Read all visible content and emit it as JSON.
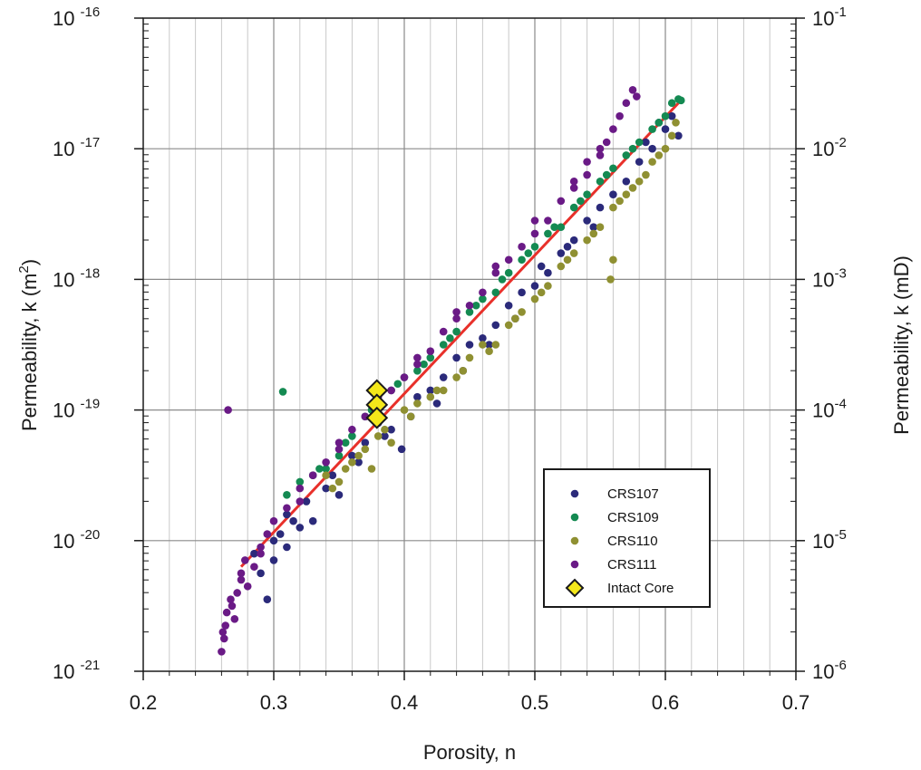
{
  "chart_data": {
    "type": "scatter",
    "title": "",
    "xlabel": "Porosity, n",
    "ylabel_left": "Permeability, k (m",
    "ylabel_left_sup": "2",
    "ylabel_left_end": ")",
    "ylabel_right": "Permeability, k (mD)",
    "xlim": [
      0.2,
      0.7
    ],
    "ylim_left_log10": [
      -21,
      -16
    ],
    "ylim_right_log10": [
      -6,
      -1
    ],
    "yscale": "log",
    "grid": true,
    "legend_placement": "lower-right",
    "x_ticks": [
      "0.2",
      "0.3",
      "0.4",
      "0.5",
      "0.6",
      "0.7"
    ],
    "y_left_ticks": [
      {
        "base": "10",
        "exp": "-16"
      },
      {
        "base": "10",
        "exp": "-17"
      },
      {
        "base": "10",
        "exp": "-18"
      },
      {
        "base": "10",
        "exp": "-19"
      },
      {
        "base": "10",
        "exp": "-20"
      },
      {
        "base": "10",
        "exp": "-21"
      }
    ],
    "y_right_ticks": [
      {
        "base": "10",
        "exp": "-1"
      },
      {
        "base": "10",
        "exp": "-2"
      },
      {
        "base": "10",
        "exp": "-3"
      },
      {
        "base": "10",
        "exp": "-4"
      },
      {
        "base": "10",
        "exp": "-5"
      },
      {
        "base": "10",
        "exp": "-6"
      }
    ],
    "fit_line": {
      "x": [
        0.275,
        0.61
      ],
      "log10_k": [
        -20.2,
        -16.65
      ],
      "color": "#e8302a"
    },
    "series": [
      {
        "name": "CRS107",
        "color": "#2b2a7a",
        "marker": "circle",
        "points": [
          [
            0.285,
            -20.1
          ],
          [
            0.29,
            -20.25
          ],
          [
            0.295,
            -20.45
          ],
          [
            0.3,
            -20.0
          ],
          [
            0.305,
            -19.95
          ],
          [
            0.31,
            -20.05
          ],
          [
            0.315,
            -19.85
          ],
          [
            0.325,
            -19.7
          ],
          [
            0.33,
            -19.85
          ],
          [
            0.34,
            -19.6
          ],
          [
            0.35,
            -19.65
          ],
          [
            0.36,
            -19.35
          ],
          [
            0.37,
            -19.25
          ],
          [
            0.38,
            -19.1
          ],
          [
            0.39,
            -19.15
          ],
          [
            0.398,
            -19.3
          ],
          [
            0.41,
            -18.9
          ],
          [
            0.42,
            -18.85
          ],
          [
            0.43,
            -18.75
          ],
          [
            0.44,
            -18.6
          ],
          [
            0.45,
            -18.5
          ],
          [
            0.46,
            -18.45
          ],
          [
            0.47,
            -18.35
          ],
          [
            0.48,
            -18.2
          ],
          [
            0.49,
            -18.1
          ],
          [
            0.5,
            -18.05
          ],
          [
            0.51,
            -17.95
          ],
          [
            0.52,
            -17.8
          ],
          [
            0.53,
            -17.7
          ],
          [
            0.54,
            -17.55
          ],
          [
            0.55,
            -17.45
          ],
          [
            0.56,
            -17.35
          ],
          [
            0.57,
            -17.25
          ],
          [
            0.58,
            -17.1
          ],
          [
            0.59,
            -17.0
          ],
          [
            0.6,
            -16.85
          ],
          [
            0.61,
            -16.9
          ],
          [
            0.605,
            -16.75
          ],
          [
            0.595,
            -16.8
          ],
          [
            0.585,
            -16.95
          ],
          [
            0.545,
            -17.6
          ],
          [
            0.525,
            -17.75
          ],
          [
            0.505,
            -17.9
          ],
          [
            0.485,
            -18.3
          ],
          [
            0.465,
            -18.5
          ],
          [
            0.445,
            -18.7
          ],
          [
            0.425,
            -18.95
          ],
          [
            0.405,
            -19.05
          ],
          [
            0.385,
            -19.2
          ],
          [
            0.365,
            -19.4
          ],
          [
            0.345,
            -19.5
          ],
          [
            0.32,
            -19.9
          ],
          [
            0.3,
            -20.15
          ],
          [
            0.31,
            -19.8
          ]
        ]
      },
      {
        "name": "CRS109",
        "color": "#148a52",
        "marker": "circle",
        "points": [
          [
            0.307,
            -18.86
          ],
          [
            0.31,
            -19.65
          ],
          [
            0.32,
            -19.55
          ],
          [
            0.33,
            -19.5
          ],
          [
            0.34,
            -19.45
          ],
          [
            0.35,
            -19.35
          ],
          [
            0.36,
            -19.2
          ],
          [
            0.37,
            -19.05
          ],
          [
            0.38,
            -18.95
          ],
          [
            0.39,
            -18.85
          ],
          [
            0.4,
            -18.75
          ],
          [
            0.41,
            -18.7
          ],
          [
            0.42,
            -18.6
          ],
          [
            0.43,
            -18.5
          ],
          [
            0.44,
            -18.4
          ],
          [
            0.45,
            -18.25
          ],
          [
            0.46,
            -18.15
          ],
          [
            0.47,
            -18.1
          ],
          [
            0.48,
            -17.95
          ],
          [
            0.49,
            -17.85
          ],
          [
            0.5,
            -17.75
          ],
          [
            0.51,
            -17.65
          ],
          [
            0.52,
            -17.6
          ],
          [
            0.53,
            -17.45
          ],
          [
            0.54,
            -17.35
          ],
          [
            0.55,
            -17.25
          ],
          [
            0.56,
            -17.15
          ],
          [
            0.57,
            -17.05
          ],
          [
            0.58,
            -16.95
          ],
          [
            0.59,
            -16.85
          ],
          [
            0.6,
            -16.75
          ],
          [
            0.605,
            -16.65
          ],
          [
            0.61,
            -16.62
          ],
          [
            0.612,
            -16.63
          ],
          [
            0.595,
            -16.8
          ],
          [
            0.575,
            -17.0
          ],
          [
            0.555,
            -17.2
          ],
          [
            0.535,
            -17.4
          ],
          [
            0.515,
            -17.6
          ],
          [
            0.495,
            -17.8
          ],
          [
            0.475,
            -18.0
          ],
          [
            0.455,
            -18.2
          ],
          [
            0.435,
            -18.45
          ],
          [
            0.415,
            -18.65
          ],
          [
            0.395,
            -18.8
          ],
          [
            0.375,
            -19.0
          ],
          [
            0.355,
            -19.25
          ],
          [
            0.335,
            -19.45
          ]
        ]
      },
      {
        "name": "CRS110",
        "color": "#8f9032",
        "marker": "circle",
        "points": [
          [
            0.34,
            -19.5
          ],
          [
            0.35,
            -19.55
          ],
          [
            0.355,
            -19.45
          ],
          [
            0.36,
            -19.4
          ],
          [
            0.37,
            -19.3
          ],
          [
            0.375,
            -19.45
          ],
          [
            0.38,
            -19.2
          ],
          [
            0.39,
            -19.25
          ],
          [
            0.4,
            -19.0
          ],
          [
            0.41,
            -18.95
          ],
          [
            0.42,
            -18.9
          ],
          [
            0.43,
            -18.85
          ],
          [
            0.44,
            -18.75
          ],
          [
            0.45,
            -18.6
          ],
          [
            0.46,
            -18.5
          ],
          [
            0.47,
            -18.5
          ],
          [
            0.48,
            -18.35
          ],
          [
            0.49,
            -18.25
          ],
          [
            0.5,
            -18.15
          ],
          [
            0.51,
            -18.05
          ],
          [
            0.52,
            -17.9
          ],
          [
            0.53,
            -17.8
          ],
          [
            0.54,
            -17.7
          ],
          [
            0.55,
            -17.6
          ],
          [
            0.56,
            -17.45
          ],
          [
            0.57,
            -17.35
          ],
          [
            0.58,
            -17.25
          ],
          [
            0.59,
            -17.1
          ],
          [
            0.6,
            -17.0
          ],
          [
            0.605,
            -16.9
          ],
          [
            0.608,
            -16.8
          ],
          [
            0.56,
            -17.85
          ],
          [
            0.558,
            -18.0
          ],
          [
            0.595,
            -17.05
          ],
          [
            0.585,
            -17.2
          ],
          [
            0.575,
            -17.3
          ],
          [
            0.565,
            -17.4
          ],
          [
            0.545,
            -17.65
          ],
          [
            0.525,
            -17.85
          ],
          [
            0.505,
            -18.1
          ],
          [
            0.485,
            -18.3
          ],
          [
            0.465,
            -18.55
          ],
          [
            0.445,
            -18.7
          ],
          [
            0.425,
            -18.85
          ],
          [
            0.405,
            -19.05
          ],
          [
            0.385,
            -19.15
          ],
          [
            0.365,
            -19.35
          ],
          [
            0.345,
            -19.6
          ]
        ]
      },
      {
        "name": "CRS111",
        "color": "#6a1a86",
        "marker": "circle",
        "points": [
          [
            0.263,
            -20.65
          ],
          [
            0.262,
            -20.75
          ],
          [
            0.261,
            -20.7
          ],
          [
            0.26,
            -20.85
          ],
          [
            0.264,
            -20.55
          ],
          [
            0.265,
            -19.0
          ],
          [
            0.267,
            -20.45
          ],
          [
            0.27,
            -20.6
          ],
          [
            0.272,
            -20.4
          ],
          [
            0.275,
            -20.3
          ],
          [
            0.278,
            -20.15
          ],
          [
            0.28,
            -20.35
          ],
          [
            0.285,
            -20.2
          ],
          [
            0.29,
            -20.05
          ],
          [
            0.295,
            -19.95
          ],
          [
            0.3,
            -19.85
          ],
          [
            0.31,
            -19.75
          ],
          [
            0.32,
            -19.6
          ],
          [
            0.33,
            -19.5
          ],
          [
            0.34,
            -19.4
          ],
          [
            0.35,
            -19.25
          ],
          [
            0.36,
            -19.15
          ],
          [
            0.37,
            -19.05
          ],
          [
            0.38,
            -18.95
          ],
          [
            0.39,
            -18.85
          ],
          [
            0.4,
            -18.75
          ],
          [
            0.41,
            -18.65
          ],
          [
            0.42,
            -18.55
          ],
          [
            0.43,
            -18.4
          ],
          [
            0.44,
            -18.3
          ],
          [
            0.45,
            -18.2
          ],
          [
            0.46,
            -18.1
          ],
          [
            0.47,
            -17.95
          ],
          [
            0.48,
            -17.85
          ],
          [
            0.49,
            -17.75
          ],
          [
            0.5,
            -17.65
          ],
          [
            0.51,
            -17.55
          ],
          [
            0.52,
            -17.4
          ],
          [
            0.53,
            -17.3
          ],
          [
            0.54,
            -17.2
          ],
          [
            0.55,
            -17.05
          ],
          [
            0.555,
            -16.95
          ],
          [
            0.56,
            -16.85
          ],
          [
            0.565,
            -16.75
          ],
          [
            0.57,
            -16.65
          ],
          [
            0.575,
            -16.55
          ],
          [
            0.578,
            -16.6
          ],
          [
            0.55,
            -17.0
          ],
          [
            0.54,
            -17.1
          ],
          [
            0.53,
            -17.25
          ],
          [
            0.5,
            -17.55
          ],
          [
            0.47,
            -17.9
          ],
          [
            0.44,
            -18.25
          ],
          [
            0.41,
            -18.6
          ],
          [
            0.38,
            -18.9
          ],
          [
            0.35,
            -19.3
          ],
          [
            0.32,
            -19.7
          ],
          [
            0.29,
            -20.1
          ],
          [
            0.275,
            -20.25
          ],
          [
            0.268,
            -20.5
          ]
        ]
      },
      {
        "name": "Intact Core",
        "color": "#f4e81a",
        "marker": "diamond",
        "points": [
          [
            0.379,
            -18.85
          ],
          [
            0.379,
            -18.96
          ],
          [
            0.379,
            -19.06
          ]
        ]
      }
    ]
  }
}
